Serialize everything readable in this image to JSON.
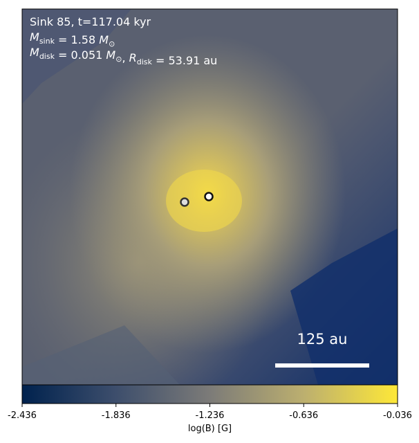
{
  "chart_data": {
    "type": "image",
    "annotations": [
      [
        {
          "t": "Sink 85, t=117.04 kyr"
        }
      ],
      [
        {
          "t": "M"
        },
        {
          "sub": "sink"
        },
        {
          "t": " = 1.58 "
        },
        {
          "t": "M"
        },
        {
          "sub": "⊙"
        }
      ],
      [
        {
          "t": "M"
        },
        {
          "sub": "disk"
        },
        {
          "t": " = 0.051 "
        },
        {
          "t": "M"
        },
        {
          "sub": "⊙"
        },
        {
          "t": ", "
        },
        {
          "t": "R"
        },
        {
          "sub": "disk"
        },
        {
          "t": " = 53.91 au"
        }
      ]
    ],
    "scale_bar_label": "125 au",
    "colorbar": {
      "label": "log(B) [G]",
      "xlim": [
        -2.436,
        -0.036
      ],
      "xticks": [
        -2.436,
        -1.836,
        -1.236,
        -0.636,
        -0.036
      ]
    }
  }
}
